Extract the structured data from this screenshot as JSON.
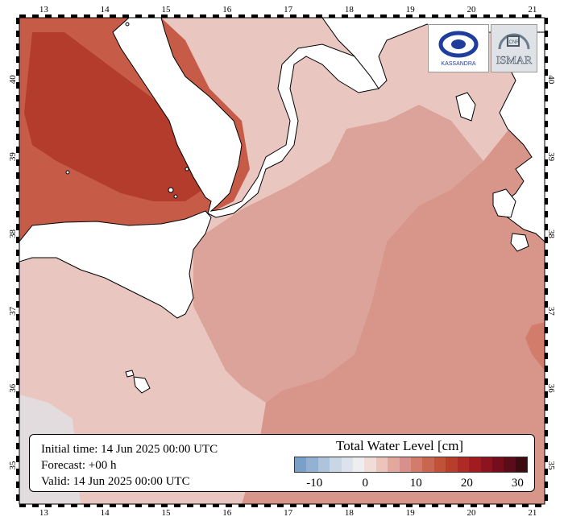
{
  "map": {
    "lon_ticks": [
      "13",
      "14",
      "15",
      "16",
      "17",
      "18",
      "19",
      "20",
      "21"
    ],
    "lat_ticks": [
      "35",
      "36",
      "37",
      "38",
      "39",
      "40"
    ],
    "lon_range": [
      12.6,
      21.2
    ],
    "lat_range": [
      34.5,
      40.8
    ],
    "land_color": "#ffffff",
    "sea_colors": {
      "light": "#e9c6c0",
      "mid": "#d8968a",
      "strong": "#c65c48",
      "deep": "#b43c2c"
    }
  },
  "info": {
    "initial_time": "Initial time: 14 Jun 2025 00:00 UTC",
    "forecast": "Forecast: +00 h",
    "valid": "Valid: 14 Jun 2025 00:00 UTC"
  },
  "legend": {
    "title": "Total Water Level [cm]",
    "tick_labels": [
      "-10",
      "0",
      "10",
      "20",
      "30"
    ],
    "tick_values": [
      -10,
      0,
      10,
      20,
      30
    ],
    "range": [
      -14,
      32
    ],
    "colors": [
      "#7aa0c8",
      "#93b1d2",
      "#aec4dc",
      "#c8d6e6",
      "#dde3ec",
      "#eeeef0",
      "#f2dcd8",
      "#ecc4bc",
      "#e2a89d",
      "#d8918a",
      "#d27c6c",
      "#c86650",
      "#c0523a",
      "#b83e2c",
      "#ae2a24",
      "#a01c20",
      "#8c1420",
      "#740e1c",
      "#5a0c18",
      "#3c0a10"
    ]
  },
  "logos": {
    "left_text": "KASSANDRA",
    "right_text": "ISMAR",
    "right_subtext": "CNR"
  }
}
